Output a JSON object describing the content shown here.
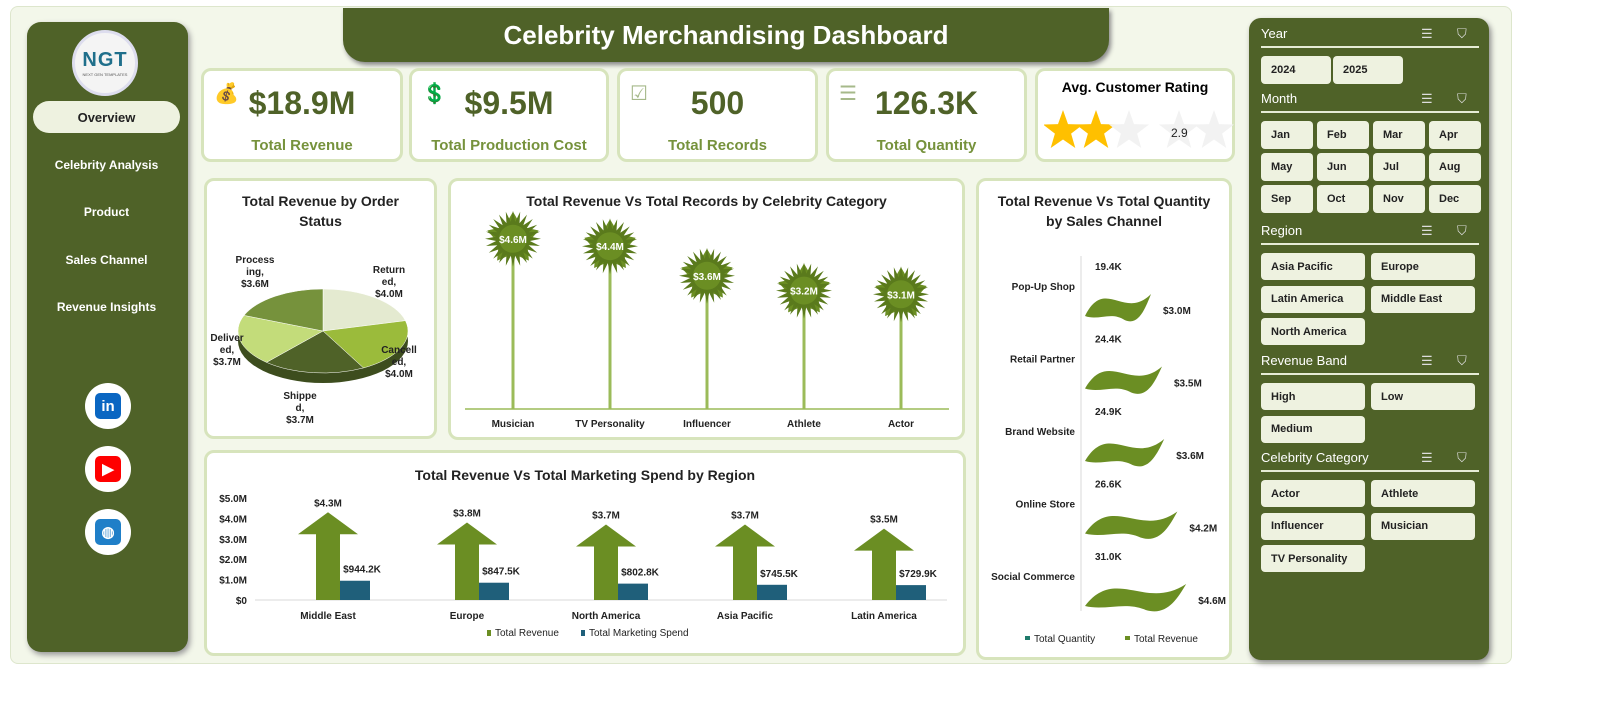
{
  "title": "Celebrity Merchandising Dashboard",
  "logo": {
    "text": "NGT",
    "subtext": "NEXT GEN TEMPLATES"
  },
  "nav": [
    {
      "label": "Overview",
      "active": true
    },
    {
      "label": "Celebrity Analysis"
    },
    {
      "label": "Product"
    },
    {
      "label": "Sales Channel"
    },
    {
      "label": "Revenue Insights"
    }
  ],
  "social": [
    {
      "icon": "linkedin-icon",
      "label": "in",
      "color": "#0a66c2"
    },
    {
      "icon": "youtube-icon",
      "label": "▶",
      "color": "#ff0000"
    },
    {
      "icon": "globe-icon",
      "label": "◍",
      "color": "#1f7fc8"
    }
  ],
  "kpis": [
    {
      "value": "$18.9M",
      "label": "Total Revenue",
      "icon": "money-bag-icon"
    },
    {
      "value": "$9.5M",
      "label": "Total Production Cost",
      "icon": "hand-money-icon"
    },
    {
      "value": "500",
      "label": "Total Records",
      "icon": "clipboard-check-icon"
    },
    {
      "value": "126.3K",
      "label": "Total Quantity",
      "icon": "clipboard-list-icon"
    }
  ],
  "rating": {
    "title": "Avg. Customer Rating",
    "value": "2.9",
    "rating": 2.9,
    "max": 5,
    "star_color": "#ffc000"
  },
  "colors": {
    "primary": "#4f6228",
    "accent": "#76923c",
    "panel": "#eef2e0",
    "border": "#d7e4bc"
  },
  "chart_data": [
    {
      "type": "pie",
      "title": "Total Revenue by Order Status",
      "categories": [
        "Returned",
        "Cancelled",
        "Shipped",
        "Delivered",
        "Processing"
      ],
      "labels": [
        [
          "Return",
          "ed,",
          "$4.0M"
        ],
        [
          "Cancell",
          "ed,",
          "$4.0M"
        ],
        [
          "Shippe",
          "d,",
          "$3.7M"
        ],
        [
          "Deliver",
          "ed,",
          "$3.7M"
        ],
        [
          "Process",
          "ing,",
          "$3.6M"
        ]
      ],
      "values": [
        4.0,
        4.0,
        3.7,
        3.7,
        3.6
      ],
      "unit": "$M"
    },
    {
      "type": "lollipop",
      "title": "Total Revenue Vs Total Records by Celebrity Category",
      "categories": [
        "Musician",
        "TV Personality",
        "Influencer",
        "Athlete",
        "Actor"
      ],
      "values": [
        4.6,
        4.4,
        3.6,
        3.2,
        3.1
      ],
      "labels": [
        "$4.6M",
        "$4.4M",
        "$3.6M",
        "$3.2M",
        "$3.1M"
      ],
      "unit": "$M"
    },
    {
      "type": "bar",
      "title": "Total Revenue Vs Total Marketing Spend by Region",
      "categories": [
        "Middle East",
        "Europe",
        "North America",
        "Asia Pacific",
        "Latin America"
      ],
      "series": [
        {
          "name": "Total Revenue",
          "values": [
            4.3,
            3.8,
            3.7,
            3.7,
            3.5
          ],
          "labels": [
            "$4.3M",
            "$3.8M",
            "$3.7M",
            "$3.7M",
            "$3.5M"
          ],
          "color": "#6b8e23"
        },
        {
          "name": "Total Marketing Spend",
          "values": [
            0.9442,
            0.8475,
            0.8028,
            0.7455,
            0.7299
          ],
          "labels": [
            "$944.2K",
            "$847.5K",
            "$802.8K",
            "$745.5K",
            "$729.9K"
          ],
          "color": "#1f5f7a"
        }
      ],
      "yticks": [
        "$0",
        "$1.0M",
        "$2.0M",
        "$3.0M",
        "$4.0M",
        "$5.0M"
      ],
      "ylim": [
        0,
        5
      ],
      "unit": "$M"
    },
    {
      "type": "bar-horizontal",
      "title": "Total Revenue Vs Total Quantity by Sales Channel",
      "categories": [
        "Pop-Up Shop",
        "Retail Partner",
        "Brand Website",
        "Online Store",
        "Social Commerce"
      ],
      "series": [
        {
          "name": "Total Quantity",
          "values": [
            19.4,
            24.4,
            24.9,
            26.6,
            31.0
          ],
          "labels": [
            "19.4K",
            "24.4K",
            "24.9K",
            "26.6K",
            "31.0K"
          ],
          "color": "#1f7a6b"
        },
        {
          "name": "Total Revenue",
          "values": [
            3.0,
            3.5,
            3.6,
            4.2,
            4.6
          ],
          "labels": [
            "$3.0M",
            "$3.5M",
            "$3.6M",
            "$4.2M",
            "$4.6M"
          ],
          "color": "#6b8e23"
        }
      ]
    }
  ],
  "slicers": [
    {
      "title": "Year",
      "cols": 4,
      "items": [
        "2024",
        "2025"
      ]
    },
    {
      "title": "Month",
      "cols": 4,
      "items": [
        "Jan",
        "Feb",
        "Mar",
        "Apr",
        "May",
        "Jun",
        "Jul",
        "Aug",
        "Sep",
        "Oct",
        "Nov",
        "Dec"
      ]
    },
    {
      "title": "Region",
      "cols": 2,
      "items": [
        "Asia Pacific",
        "Europe",
        "Latin America",
        "Middle East",
        "North America"
      ]
    },
    {
      "title": "Revenue Band",
      "cols": 2,
      "items": [
        "High",
        "Low",
        "Medium"
      ]
    },
    {
      "title": "Celebrity Category",
      "cols": 2,
      "items": [
        "Actor",
        "Athlete",
        "Influencer",
        "Musician",
        "TV Personality"
      ]
    }
  ]
}
